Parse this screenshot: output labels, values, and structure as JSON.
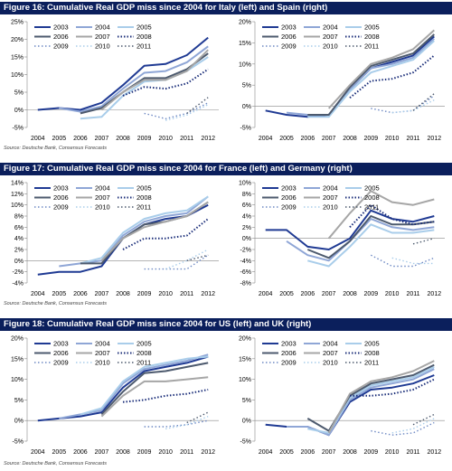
{
  "colors": {
    "header_bg": "#0b1f5c",
    "s2003": "#1f3a93",
    "s2004": "#8fa6d6",
    "s2005": "#a9cdea",
    "s2006": "#4d5a6e",
    "s2007": "#a6a6a6",
    "s2008": "#1c2f7a",
    "s2009": "#6f8ac4",
    "s2010": "#a9cdea",
    "s2011": "#4d5a6e"
  },
  "figures": [
    {
      "title": "Figure 16: Cumulative Real GDP miss since 2004 for Italy (left) and Spain (right)",
      "source": "Source: Deutsche Bank, Consensus Forecasts"
    },
    {
      "title": "Figure 17: Cumulative Real GDP miss since 2004 for France (left) and Germany (right)",
      "source": "Source: Deutsche Bank, Consensus Forecasts"
    },
    {
      "title": "Figure 18: Cumulative Real GDP miss since 2004 for US (left) and UK (right)",
      "source": "Source: Deutsche Bank, Consensus Forecasts"
    }
  ],
  "chart_data": [
    {
      "type": "line",
      "ylim": [
        -5,
        25
      ],
      "yticks": [
        "-5%",
        "0%",
        "5%",
        "10%",
        "15%",
        "20%",
        "25%"
      ],
      "categories": [
        "2004",
        "2005",
        "2006",
        "2007",
        "2008",
        "2009",
        "2010",
        "2011",
        "2012"
      ],
      "series": [
        {
          "name": "2003",
          "values": [
            0,
            0.5,
            0,
            2,
            7,
            12.5,
            13,
            15.5,
            20.5
          ]
        },
        {
          "name": "2004",
          "values": [
            null,
            0.5,
            -0.5,
            1,
            6,
            10.5,
            11,
            13.5,
            18
          ]
        },
        {
          "name": "2005",
          "values": [
            null,
            null,
            -2.5,
            -2,
            4,
            8,
            8.5,
            11,
            15
          ]
        },
        {
          "name": "2006",
          "values": [
            null,
            null,
            -1,
            0.5,
            5,
            9,
            9,
            11.5,
            16
          ]
        },
        {
          "name": "2007",
          "values": [
            null,
            null,
            null,
            0,
            5,
            8.5,
            8.5,
            11,
            17
          ]
        },
        {
          "name": "2008",
          "values": [
            null,
            null,
            null,
            null,
            4,
            6.5,
            6,
            7.5,
            11.5
          ]
        },
        {
          "name": "2009",
          "values": [
            null,
            null,
            null,
            null,
            null,
            -1,
            -2.5,
            -1,
            2
          ]
        },
        {
          "name": "2010",
          "values": [
            null,
            null,
            null,
            null,
            null,
            null,
            -3,
            -1.5,
            1.5
          ]
        },
        {
          "name": "2011",
          "values": [
            null,
            null,
            null,
            null,
            null,
            null,
            null,
            -1,
            3.5
          ]
        }
      ]
    },
    {
      "type": "line",
      "ylim": [
        -5,
        20
      ],
      "yticks": [
        "-5%",
        "0%",
        "5%",
        "10%",
        "15%",
        "20%"
      ],
      "categories": [
        "2004",
        "2005",
        "2006",
        "2007",
        "2008",
        "2009",
        "2010",
        "2011",
        "2012"
      ],
      "series": [
        {
          "name": "2003",
          "values": [
            -1,
            -2,
            -2.5,
            -2,
            4,
            9,
            10.5,
            12,
            16.5
          ]
        },
        {
          "name": "2004",
          "values": [
            null,
            -1.5,
            -2,
            -2,
            4,
            9,
            10,
            11.5,
            16
          ]
        },
        {
          "name": "2005",
          "values": [
            null,
            null,
            -2.5,
            -2.5,
            3.5,
            8,
            9.5,
            11,
            15.5
          ]
        },
        {
          "name": "2006",
          "values": [
            null,
            null,
            -2,
            -2,
            4.5,
            9.5,
            11,
            12.5,
            17
          ]
        },
        {
          "name": "2007",
          "values": [
            null,
            null,
            null,
            -0.5,
            5,
            10,
            11.5,
            13.5,
            18
          ]
        },
        {
          "name": "2008",
          "values": [
            null,
            null,
            null,
            null,
            2,
            6,
            6.5,
            8,
            12
          ]
        },
        {
          "name": "2009",
          "values": [
            null,
            null,
            null,
            null,
            null,
            -0.5,
            -1.5,
            -1,
            2.5
          ]
        },
        {
          "name": "2010",
          "values": [
            null,
            null,
            null,
            null,
            null,
            null,
            -1.5,
            -1,
            1.5
          ]
        },
        {
          "name": "2011",
          "values": [
            null,
            null,
            null,
            null,
            null,
            null,
            null,
            -1,
            3
          ]
        }
      ]
    },
    {
      "type": "line",
      "ylim": [
        -4,
        14
      ],
      "yticks": [
        "-4%",
        "-2%",
        "0%",
        "2%",
        "4%",
        "6%",
        "8%",
        "10%",
        "12%",
        "14%"
      ],
      "categories": [
        "2004",
        "2005",
        "2006",
        "2007",
        "2008",
        "2009",
        "2010",
        "2011",
        "2012"
      ],
      "series": [
        {
          "name": "2003",
          "values": [
            -2.5,
            -2,
            -2,
            -1,
            4,
            6.5,
            7.5,
            8,
            10
          ]
        },
        {
          "name": "2004",
          "values": [
            null,
            -1,
            -0.5,
            0,
            4.5,
            7,
            8,
            8.5,
            11.5
          ]
        },
        {
          "name": "2005",
          "values": [
            null,
            null,
            -0.5,
            0.5,
            5,
            7.5,
            8.5,
            9,
            11.5
          ]
        },
        {
          "name": "2006",
          "values": [
            null,
            null,
            -0.5,
            -0.5,
            4,
            6.5,
            7,
            8,
            10.5
          ]
        },
        {
          "name": "2007",
          "values": [
            null,
            null,
            null,
            0,
            4,
            6,
            7,
            8,
            10.5
          ]
        },
        {
          "name": "2008",
          "values": [
            null,
            null,
            null,
            null,
            2,
            4,
            4,
            4.5,
            7.5
          ]
        },
        {
          "name": "2009",
          "values": [
            null,
            null,
            null,
            null,
            null,
            -1.5,
            -1.5,
            -1.5,
            1
          ]
        },
        {
          "name": "2010",
          "values": [
            null,
            null,
            null,
            null,
            null,
            null,
            -1.5,
            0,
            2
          ]
        },
        {
          "name": "2011",
          "values": [
            null,
            null,
            null,
            null,
            null,
            null,
            null,
            0,
            1
          ]
        }
      ]
    },
    {
      "type": "line",
      "ylim": [
        -8,
        10
      ],
      "yticks": [
        "-8%",
        "-6%",
        "-4%",
        "-2%",
        "0%",
        "2%",
        "4%",
        "6%",
        "8%",
        "10%"
      ],
      "categories": [
        "2004",
        "2005",
        "2006",
        "2007",
        "2008",
        "2009",
        "2010",
        "2011",
        "2012"
      ],
      "series": [
        {
          "name": "2003",
          "values": [
            1.5,
            1.5,
            -1.5,
            -2,
            0,
            5,
            3.5,
            3,
            4
          ]
        },
        {
          "name": "2004",
          "values": [
            null,
            -0.5,
            -3,
            -4,
            -0.5,
            3.5,
            2,
            1.5,
            2
          ]
        },
        {
          "name": "2005",
          "values": [
            null,
            null,
            -4,
            -5,
            -1.5,
            2.5,
            1,
            1,
            1.5
          ]
        },
        {
          "name": "2006",
          "values": [
            null,
            null,
            -2,
            -3.5,
            -0.5,
            4,
            2.5,
            2.5,
            3
          ]
        },
        {
          "name": "2007",
          "values": [
            null,
            null,
            null,
            0,
            4.5,
            8.5,
            6.5,
            6,
            7
          ]
        },
        {
          "name": "2008",
          "values": [
            null,
            null,
            null,
            null,
            2,
            6,
            3.5,
            2.5,
            3
          ]
        },
        {
          "name": "2009",
          "values": [
            null,
            null,
            null,
            null,
            null,
            -3,
            -5,
            -5,
            -3.5
          ]
        },
        {
          "name": "2010",
          "values": [
            null,
            null,
            null,
            null,
            null,
            null,
            -3.5,
            -4.5,
            -4.5
          ]
        },
        {
          "name": "2011",
          "values": [
            null,
            null,
            null,
            null,
            null,
            null,
            null,
            -1,
            0
          ]
        }
      ]
    },
    {
      "type": "line",
      "ylim": [
        -5,
        20
      ],
      "yticks": [
        "-5%",
        "0%",
        "5%",
        "10%",
        "15%",
        "20%"
      ],
      "categories": [
        "2004",
        "2005",
        "2006",
        "2007",
        "2008",
        "2009",
        "2010",
        "2011",
        "2012"
      ],
      "series": [
        {
          "name": "2003",
          "values": [
            0,
            0.5,
            1,
            2,
            8,
            12,
            13,
            14,
            15.5
          ]
        },
        {
          "name": "2004",
          "values": [
            null,
            0.5,
            1.5,
            2.5,
            9,
            12.5,
            13.5,
            14.5,
            16
          ]
        },
        {
          "name": "2005",
          "values": [
            null,
            null,
            1.5,
            3,
            9.5,
            13,
            14,
            15,
            15.5
          ]
        },
        {
          "name": "2006",
          "values": [
            null,
            null,
            null,
            1.5,
            7,
            11.5,
            12,
            13,
            14
          ]
        },
        {
          "name": "2007",
          "values": [
            null,
            null,
            null,
            1,
            6,
            9.5,
            9.5,
            10,
            10.5
          ]
        },
        {
          "name": "2008",
          "values": [
            null,
            null,
            null,
            null,
            4.5,
            5,
            6,
            6.5,
            7.5
          ]
        },
        {
          "name": "2009",
          "values": [
            null,
            null,
            null,
            null,
            null,
            -1.5,
            -1.5,
            -1,
            0
          ]
        },
        {
          "name": "2010",
          "values": [
            null,
            null,
            null,
            null,
            null,
            null,
            -2,
            -1,
            1
          ]
        },
        {
          "name": "2011",
          "values": [
            null,
            null,
            null,
            null,
            null,
            null,
            null,
            -0.5,
            2
          ]
        }
      ]
    },
    {
      "type": "line",
      "ylim": [
        -5,
        20
      ],
      "yticks": [
        "-5%",
        "0%",
        "5%",
        "10%",
        "15%",
        "20%"
      ],
      "categories": [
        "2004",
        "2005",
        "2006",
        "2007",
        "2008",
        "2009",
        "2010",
        "2011",
        "2012"
      ],
      "series": [
        {
          "name": "2003",
          "values": [
            -1,
            -1.5,
            -1.5,
            -3.5,
            4.5,
            7.5,
            8,
            9,
            11
          ]
        },
        {
          "name": "2004",
          "values": [
            null,
            -1.5,
            -1.5,
            -3.5,
            5,
            8,
            9,
            10,
            12.5
          ]
        },
        {
          "name": "2005",
          "values": [
            null,
            null,
            -2,
            -3,
            5.5,
            8.5,
            9.5,
            10.5,
            13
          ]
        },
        {
          "name": "2006",
          "values": [
            null,
            null,
            0.5,
            -2.5,
            6,
            9,
            10,
            11,
            13.5
          ]
        },
        {
          "name": "2007",
          "values": [
            null,
            null,
            null,
            -3,
            6.5,
            9.5,
            10.5,
            12,
            14.5
          ]
        },
        {
          "name": "2008",
          "values": [
            null,
            null,
            null,
            null,
            6,
            6,
            6.5,
            7.5,
            10
          ]
        },
        {
          "name": "2009",
          "values": [
            null,
            null,
            null,
            null,
            null,
            -2.5,
            -3.5,
            -3,
            -0.5
          ]
        },
        {
          "name": "2010",
          "values": [
            null,
            null,
            null,
            null,
            null,
            null,
            -3,
            -2,
            0.5
          ]
        },
        {
          "name": "2011",
          "values": [
            null,
            null,
            null,
            null,
            null,
            null,
            null,
            -1,
            1.5
          ]
        }
      ]
    }
  ]
}
